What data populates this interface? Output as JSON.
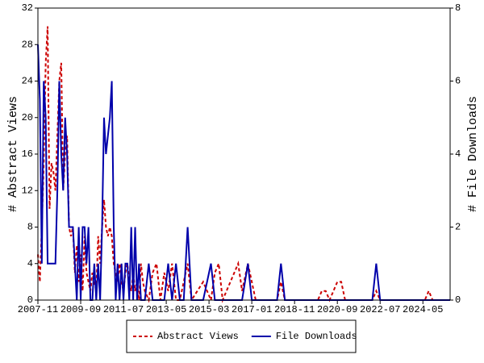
{
  "chart_data": {
    "type": "line",
    "y_label": "# Abstract Views",
    "y2_label": "# File Downloads",
    "x": [
      "2007-11",
      "2007-12",
      "2008-01",
      "2008-02",
      "2008-03",
      "2008-04",
      "2008-05",
      "2008-06",
      "2008-07",
      "2008-08",
      "2008-09",
      "2008-10",
      "2008-11",
      "2008-12",
      "2009-01",
      "2009-02",
      "2009-03",
      "2009-04",
      "2009-05",
      "2009-06",
      "2009-07",
      "2009-08",
      "2009-09",
      "2009-10",
      "2009-11",
      "2009-12",
      "2010-01",
      "2010-02",
      "2010-03",
      "2010-04",
      "2010-05",
      "2010-06",
      "2010-07",
      "2010-08",
      "2010-09",
      "2010-10",
      "2010-11",
      "2010-12",
      "2011-01",
      "2011-02",
      "2011-03",
      "2011-04",
      "2011-05",
      "2011-06",
      "2011-07",
      "2011-08",
      "2011-09",
      "2011-10",
      "2011-11",
      "2011-12",
      "2012-01",
      "2012-02",
      "2012-03",
      "2012-04",
      "2012-05",
      "2012-06",
      "2012-08",
      "2012-10",
      "2012-12",
      "2013-02",
      "2013-04",
      "2013-06",
      "2013-08",
      "2013-10",
      "2013-12",
      "2014-02",
      "2014-04",
      "2014-06",
      "2014-09",
      "2014-12",
      "2015-04",
      "2015-06",
      "2015-08",
      "2015-10",
      "2016-02",
      "2016-06",
      "2016-08",
      "2016-11",
      "2017-01",
      "2017-03",
      "2018-02",
      "2018-04",
      "2018-06",
      "2019-11",
      "2020-01",
      "2020-03",
      "2020-05",
      "2020-07",
      "2020-09",
      "2020-11",
      "2021-01",
      "2022-03",
      "2022-05",
      "2022-07",
      "2024-06",
      "2024-08",
      "2024-10",
      "2025-07"
    ],
    "series": [
      {
        "name": "Abstract Views",
        "color": "#cc0000",
        "dash": true,
        "values": [
          5,
          2,
          8,
          15,
          26,
          30,
          10,
          15,
          14,
          12,
          18,
          24,
          26,
          12,
          16,
          18,
          8,
          7,
          8,
          3,
          6,
          2,
          5,
          1,
          7,
          3,
          2,
          1,
          3,
          2,
          1,
          7,
          4,
          8,
          11,
          8,
          7,
          8,
          7,
          4,
          3,
          2,
          4,
          2,
          1,
          3,
          4,
          2,
          1,
          3,
          1,
          2,
          0,
          4,
          2,
          1,
          0,
          3,
          4,
          0,
          3,
          1,
          4,
          0,
          0,
          2,
          4,
          0,
          1,
          2,
          0,
          3,
          4,
          0,
          2,
          4,
          1,
          4,
          2,
          0,
          0,
          2,
          0,
          0,
          1,
          1,
          0,
          1,
          2,
          2,
          0,
          0,
          1,
          0,
          0,
          1,
          0,
          0
        ]
      },
      {
        "name": "File Downloads",
        "color": "#0000aa",
        "axis": "y2",
        "values": [
          7,
          5.5,
          1,
          6,
          5,
          1,
          1,
          1,
          1,
          1,
          3,
          6,
          4,
          3,
          5,
          4,
          2,
          2,
          2,
          1,
          0,
          2,
          0,
          2,
          2,
          1,
          2,
          0,
          0,
          1,
          0,
          1,
          0,
          2,
          5,
          4,
          4.5,
          5,
          6,
          2,
          0,
          1,
          0,
          1,
          0,
          1,
          1,
          0,
          2,
          0,
          2,
          0,
          1,
          0,
          0,
          0,
          1,
          0,
          0,
          0,
          0,
          1,
          0,
          1,
          0,
          0,
          2,
          0,
          0,
          0,
          1,
          0,
          0,
          0,
          0,
          0,
          0,
          1,
          0,
          0,
          0,
          1,
          0,
          0,
          0,
          0,
          0,
          0,
          0,
          0,
          0,
          0,
          1,
          0,
          0,
          0,
          0,
          0
        ]
      }
    ],
    "xlim": [
      "2007-11",
      "2025-07"
    ],
    "xticks": [
      "2007-11",
      "2009-09",
      "2011-07",
      "2013-05",
      "2015-03",
      "2017-01",
      "2018-11",
      "2020-09",
      "2022-07",
      "2024-05"
    ],
    "ylim": [
      0,
      32
    ],
    "yticks": [
      0,
      4,
      8,
      12,
      16,
      20,
      24,
      28,
      32
    ],
    "y2lim": [
      0,
      8
    ],
    "y2ticks": [
      0,
      2,
      4,
      6,
      8
    ],
    "legend": "bottom"
  }
}
